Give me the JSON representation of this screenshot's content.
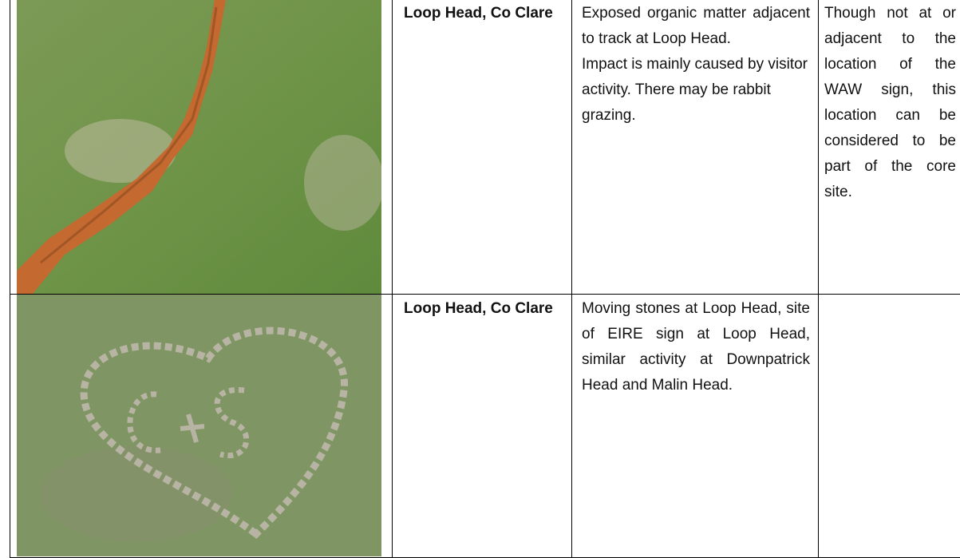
{
  "table": {
    "rows": [
      {
        "location": "Loop Head, Co Clare",
        "description": [
          "Exposed organic matter adjacent to track at Loop Head.",
          "Impact is mainly caused by visitor activity. There may be rabbit grazing."
        ],
        "note": "Though not at or adjacent to the location of the WAW sign, this location can be considered to be part of the core site."
      },
      {
        "location": "Loop Head, Co Clare",
        "description": [
          "Moving stones at Loop Head, site of EIRE sign at Loop Head, similar activity at Downpatrick Head and Malin Head."
        ]
      }
    ]
  }
}
